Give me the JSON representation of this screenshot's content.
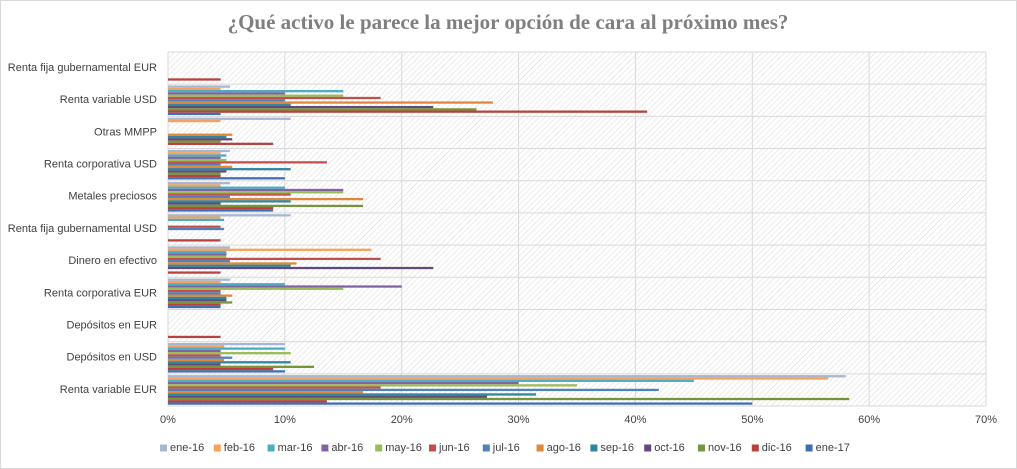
{
  "chart_data": {
    "type": "bar",
    "orientation": "horizontal",
    "title": "¿Qué activo le parece la mejor opción de cara al próximo mes?",
    "categories": [
      "Renta fija gubernamental EUR",
      "Renta variable USD",
      "Otras MMPP",
      "Renta corporativa USD",
      "Metales preciosos",
      "Renta fija gubernamental USD",
      "Dinero en efectivo",
      "Renta corporativa EUR",
      "Depósitos en EUR",
      "Depósitos en USD",
      "Renta variable EUR"
    ],
    "series": [
      {
        "name": "ene-16",
        "color": "#a7b6d2",
        "values": [
          0,
          5.3,
          10.5,
          5.3,
          5.3,
          10.5,
          5.3,
          5.3,
          0,
          10,
          58
        ]
      },
      {
        "name": "feb-16",
        "color": "#f5a35c",
        "values": [
          0,
          4.5,
          4.5,
          4.5,
          4.5,
          4.5,
          17.4,
          4.5,
          0,
          4.8,
          56.5
        ]
      },
      {
        "name": "mar-16",
        "color": "#4bacc6",
        "values": [
          0,
          15,
          0,
          5,
          10,
          4.8,
          5,
          10,
          0,
          10,
          45
        ]
      },
      {
        "name": "abr-16",
        "color": "#8064a2",
        "values": [
          0,
          10,
          0,
          4.5,
          15,
          0,
          5,
          20,
          0,
          4.5,
          30
        ]
      },
      {
        "name": "may-16",
        "color": "#9bbb59",
        "values": [
          0,
          15,
          0,
          5,
          15,
          0,
          5,
          15,
          0,
          10.5,
          35
        ]
      },
      {
        "name": "jun-16",
        "color": "#c0504d",
        "values": [
          0,
          18.2,
          0,
          13.6,
          10.5,
          4.5,
          18.2,
          4.5,
          0,
          4.5,
          18.2
        ]
      },
      {
        "name": "jul-16",
        "color": "#4f81bd",
        "values": [
          0,
          10,
          0,
          4.5,
          5.3,
          4.8,
          5.3,
          4.5,
          0,
          5.5,
          42
        ]
      },
      {
        "name": "ago-16",
        "color": "#e0873a",
        "values": [
          0,
          27.8,
          5.5,
          5.5,
          16.7,
          0,
          11,
          5.5,
          0,
          4.8,
          16.7
        ]
      },
      {
        "name": "sep-16",
        "color": "#31859c",
        "values": [
          0,
          10.5,
          5,
          10.5,
          10.5,
          0,
          10.5,
          5,
          0,
          10.5,
          31.5
        ]
      },
      {
        "name": "oct-16",
        "color": "#604a7b",
        "values": [
          0,
          22.7,
          5.5,
          5,
          4.5,
          0,
          22.7,
          5,
          0,
          4.5,
          27.3
        ]
      },
      {
        "name": "nov-16",
        "color": "#77933c",
        "values": [
          0,
          26.4,
          4.5,
          4.5,
          16.7,
          0,
          0,
          5.5,
          0,
          12.5,
          58.3
        ]
      },
      {
        "name": "dic-16",
        "color": "#b8403d",
        "values": [
          4.5,
          41,
          9,
          4.5,
          9,
          4.5,
          4.5,
          4.5,
          4.5,
          9,
          13.6
        ]
      },
      {
        "name": "ene-17",
        "color": "#3f6fb0",
        "values": [
          0,
          4.5,
          0,
          10,
          9,
          0,
          0,
          4.5,
          0,
          10,
          50
        ]
      }
    ],
    "xlim": [
      0,
      70
    ],
    "xticks": [
      {
        "value": 0,
        "label": "0%"
      },
      {
        "value": 10,
        "label": "10%"
      },
      {
        "value": 20,
        "label": "20%"
      },
      {
        "value": 30,
        "label": "30%"
      },
      {
        "value": 40,
        "label": "40%"
      },
      {
        "value": 50,
        "label": "50%"
      },
      {
        "value": 60,
        "label": "60%"
      },
      {
        "value": 70,
        "label": "70%"
      }
    ],
    "grid": true,
    "legend": "bottom"
  }
}
